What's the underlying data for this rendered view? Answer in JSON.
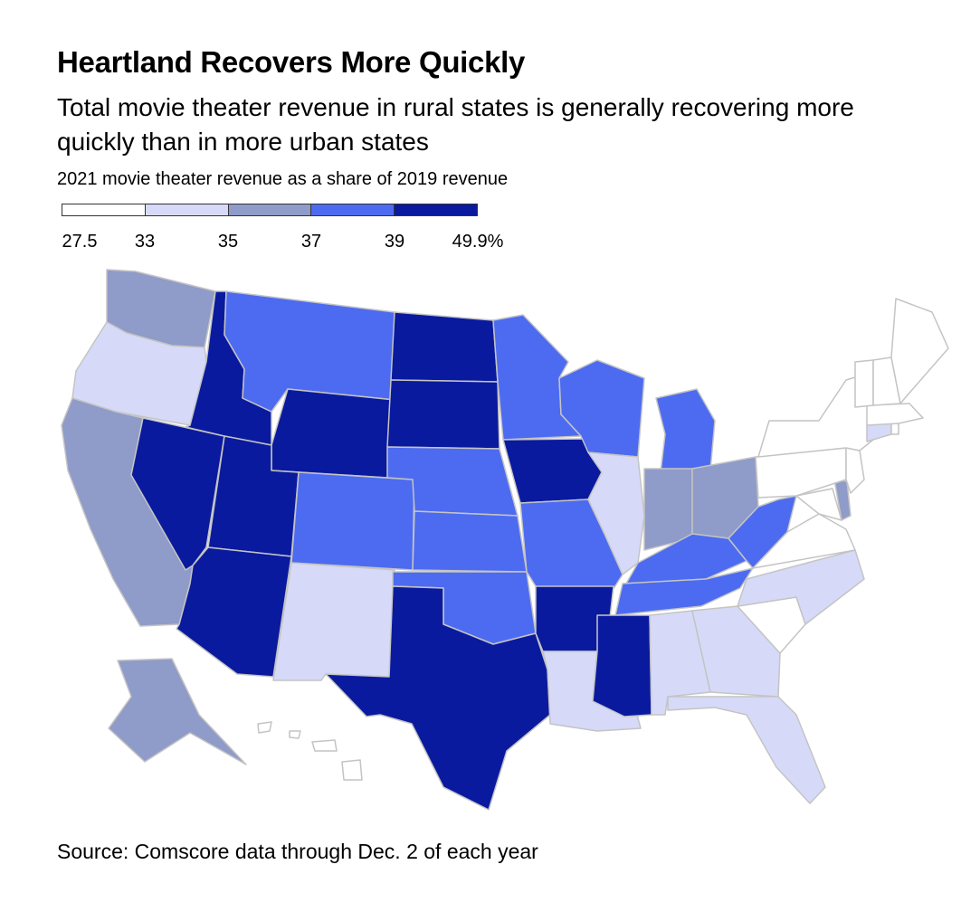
{
  "header": {
    "title": "Heartland Recovers More Quickly",
    "subtitle": "Total movie theater revenue in rural states is generally recovering more quickly than in more urban states"
  },
  "legend": {
    "title": "2021 movie theater revenue as a share of 2019 revenue",
    "ticks": [
      "27.5",
      "33",
      "35",
      "37",
      "39",
      "49.9%"
    ],
    "colors": [
      "#ffffff",
      "#d6daf8",
      "#8f9bc8",
      "#4d6bf0",
      "#0a1a9e"
    ]
  },
  "footer": {
    "source": "Source: Comscore data through Dec. 2 of each year"
  },
  "map_data": {
    "measure": "2021 movie theater revenue as a share of 2019 revenue (%)",
    "bins": [
      {
        "range": "27.5–33",
        "color": "#ffffff"
      },
      {
        "range": "33–35",
        "color": "#d6daf8"
      },
      {
        "range": "35–37",
        "color": "#8f9bc8"
      },
      {
        "range": "37–39",
        "color": "#4d6bf0"
      },
      {
        "range": "39–49.9",
        "color": "#0a1a9e"
      }
    ],
    "states": {
      "WA": 2,
      "OR": 1,
      "CA": 2,
      "NV": 4,
      "ID": 4,
      "MT": 3,
      "WY": 4,
      "UT": 4,
      "AZ": 4,
      "CO": 3,
      "NM": 1,
      "ND": 4,
      "SD": 4,
      "NE": 3,
      "KS": 3,
      "OK": 3,
      "TX": 4,
      "MN": 3,
      "IA": 4,
      "MO": 3,
      "AR": 4,
      "LA": 1,
      "WI": 3,
      "IL": 1,
      "MI": 3,
      "IN": 2,
      "OH": 2,
      "KY": 3,
      "TN": 3,
      "MS": 4,
      "AL": 1,
      "GA": 1,
      "FL": 1,
      "SC": 0,
      "NC": 1,
      "VA": 0,
      "WV": 3,
      "MD": 0,
      "DE": 2,
      "NJ": 0,
      "PA": 0,
      "NY": 0,
      "CT": 1,
      "RI": 0,
      "MA": 0,
      "VT": 0,
      "NH": 0,
      "ME": 0,
      "AK": 2,
      "HI": 0
    }
  }
}
